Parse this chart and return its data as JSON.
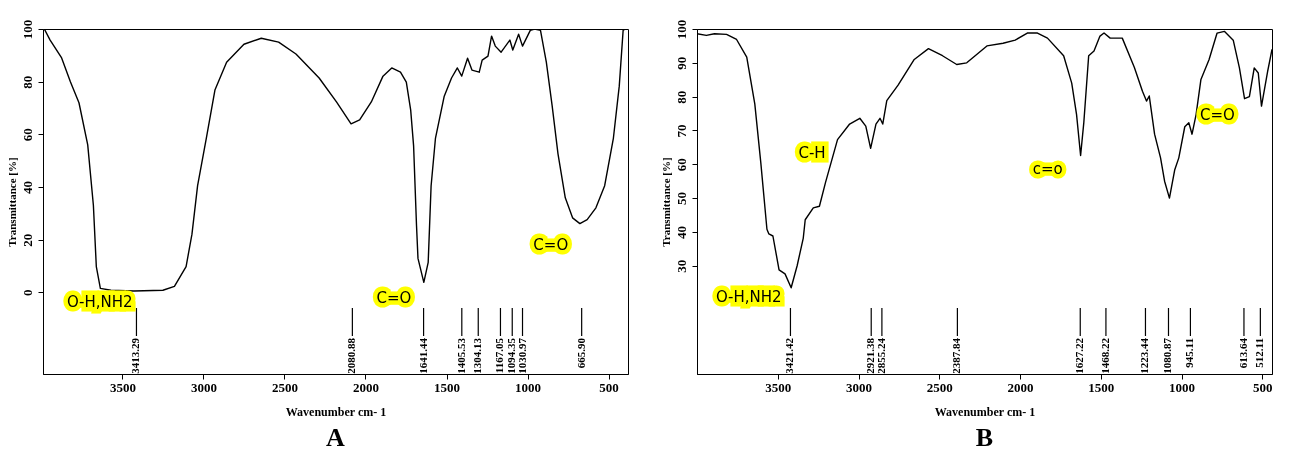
{
  "chart_data": [
    {
      "type": "line",
      "title": "A",
      "xlabel": "Wavenumber cm- 1",
      "ylabel": "Transmittance [%]",
      "xlim": [
        3990,
        380
      ],
      "ylim": [
        -31,
        100
      ],
      "xticks": [
        3500,
        3000,
        2500,
        2000,
        1500,
        1000,
        500
      ],
      "yticks": [
        0,
        20,
        40,
        60,
        80,
        100
      ],
      "grid": false,
      "series": [
        {
          "color": "#000000",
          "x": [
            3982,
            3946,
            3875,
            3821,
            3768,
            3714,
            3679,
            3661,
            3636,
            3571,
            3429,
            3250,
            3179,
            3107,
            3071,
            3036,
            2982,
            2929,
            2857,
            2750,
            2643,
            2536,
            2429,
            2286,
            2179,
            2089,
            2036,
            1964,
            1892,
            1838,
            1784,
            1748,
            1721,
            1703,
            1685,
            1676,
            1640,
            1613,
            1595,
            1568,
            1514,
            1469,
            1433,
            1406,
            1370,
            1343,
            1298,
            1280,
            1244,
            1222,
            1199,
            1163,
            1109,
            1091,
            1055,
            1031,
            983,
            956,
            920,
            884,
            848,
            812,
            767,
            722,
            677,
            632,
            578,
            524,
            470,
            434,
            410,
            398
          ],
          "values": [
            100,
            95.8,
            89,
            80,
            72,
            56,
            33,
            9.8,
            1.5,
            0.8,
            0.5,
            0.8,
            2.3,
            9.8,
            22,
            40.5,
            58.6,
            76.8,
            87.4,
            94.2,
            96.5,
            95,
            90.5,
            81.4,
            72.3,
            64,
            65.5,
            72.3,
            82.1,
            85.2,
            83.6,
            79.8,
            69.2,
            55.6,
            25.3,
            12.9,
            3.8,
            11.4,
            40.5,
            58.6,
            74.5,
            81.4,
            85.2,
            82.1,
            88.9,
            84.4,
            83.6,
            88.2,
            89.7,
            97.3,
            93.5,
            91.2,
            95.8,
            92,
            98,
            93.5,
            99.5,
            100,
            99.5,
            87.4,
            70.8,
            52.6,
            35.9,
            28.3,
            26.1,
            27.6,
            32.1,
            40.5,
            58.6,
            78.3,
            99.5,
            100
          ]
        }
      ],
      "ref_lines": [
        {
          "axis": "x",
          "value": 3413.29,
          "label": "3413.29"
        },
        {
          "axis": "x",
          "value": 2080.88,
          "label": "2080.88"
        },
        {
          "axis": "x",
          "value": 1641.44,
          "label": "1641.44"
        },
        {
          "axis": "x",
          "value": 1405.53,
          "label": "1405.53"
        },
        {
          "axis": "x",
          "value": 1304.13,
          "label": "1304.13"
        },
        {
          "axis": "x",
          "value": 1167.05,
          "label": "1167.05"
        },
        {
          "axis": "x",
          "value": 1094.35,
          "label": "1094.35"
        },
        {
          "axis": "x",
          "value": 1030.97,
          "label": "1030.97"
        },
        {
          "axis": "x",
          "value": 665.9,
          "label": "665.90"
        }
      ],
      "annotations": [
        "O-H,NH2",
        "C=O",
        "C=O"
      ]
    },
    {
      "type": "line",
      "title": "B",
      "xlabel": "Wavenumber cm- 1",
      "ylabel": "Transmittance [%]",
      "xlim": [
        4000,
        440
      ],
      "ylim": [
        -2,
        100
      ],
      "xticks": [
        3500,
        3000,
        2500,
        2000,
        1500,
        1000,
        500
      ],
      "yticks": [
        30,
        40,
        50,
        60,
        70,
        80,
        90,
        100
      ],
      "grid": false,
      "series": [
        {
          "color": "#000000",
          "x": [
            4000,
            3942,
            3892,
            3817,
            3755,
            3692,
            3642,
            3605,
            3567,
            3555,
            3530,
            3492,
            3455,
            3417,
            3380,
            3342,
            3330,
            3280,
            3242,
            3205,
            3130,
            3055,
            2992,
            2955,
            2925,
            2892,
            2867,
            2850,
            2825,
            2755,
            2655,
            2567,
            2480,
            2392,
            2330,
            2205,
            2105,
            2030,
            1955,
            1892,
            1830,
            1730,
            1680,
            1650,
            1625,
            1605,
            1575,
            1542,
            1505,
            1480,
            1442,
            1367,
            1292,
            1242,
            1217,
            1200,
            1167,
            1130,
            1105,
            1075,
            1042,
            1017,
            980,
            955,
            935,
            910,
            880,
            830,
            780,
            735,
            680,
            642,
            610,
            580,
            550,
            525,
            505,
            467,
            440
          ],
          "values": [
            98.6,
            98.1,
            98.6,
            98.4,
            96.9,
            91.7,
            77.8,
            60.5,
            40.8,
            39.4,
            38.8,
            28.8,
            27.6,
            23.5,
            30,
            38.2,
            43.6,
            47.1,
            47.6,
            54.5,
            67.3,
            71.9,
            73.6,
            71.3,
            64.7,
            71.9,
            73.6,
            71.9,
            78.8,
            83.4,
            91,
            94.2,
            92.1,
            89.5,
            90,
            95,
            95.8,
            96.7,
            98.8,
            98.8,
            97.3,
            92.1,
            84,
            74.7,
            62.6,
            72.4,
            92.1,
            93.5,
            97.9,
            98.8,
            97.3,
            97.3,
            88.6,
            81.6,
            78.7,
            80.2,
            68.9,
            61.9,
            55,
            50,
            58.4,
            61.9,
            71.1,
            72.3,
            68.9,
            74.7,
            85.1,
            90.9,
            98.8,
            99.3,
            96.7,
            88.6,
            79.4,
            80,
            88.5,
            87,
            77.2,
            87.5,
            94
          ]
        }
      ],
      "ref_lines": [
        {
          "axis": "x",
          "value": 3421.42,
          "label": "3421.42"
        },
        {
          "axis": "x",
          "value": 2921.38,
          "label": "2921.38"
        },
        {
          "axis": "x",
          "value": 2855.24,
          "label": "2855.24"
        },
        {
          "axis": "x",
          "value": 2387.84,
          "label": "2387.84"
        },
        {
          "axis": "x",
          "value": 1627.22,
          "label": "1627.22"
        },
        {
          "axis": "x",
          "value": 1468.22,
          "label": "1468.22"
        },
        {
          "axis": "x",
          "value": 1223.44,
          "label": "1223.44"
        },
        {
          "axis": "x",
          "value": 1080.87,
          "label": "1080.87"
        },
        {
          "axis": "x",
          "value": 945.11,
          "label": "945.11"
        },
        {
          "axis": "x",
          "value": 613.64,
          "label": "613.64"
        },
        {
          "axis": "x",
          "value": 512.11,
          "label": "512.11"
        }
      ],
      "annotations": [
        "O-H,NH2",
        "C-H",
        "c=o",
        "C=O"
      ]
    }
  ]
}
